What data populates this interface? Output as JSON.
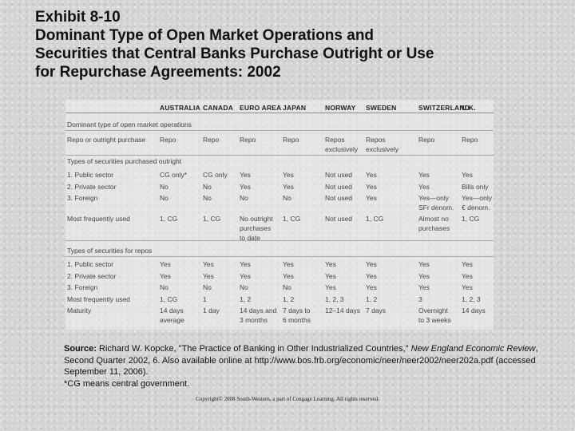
{
  "title": {
    "line1": "Exhibit 8-10",
    "line2": "Dominant Type of Open Market Operations and",
    "line3": "Securities that Central Banks Purchase Outright or Use",
    "line4": "for Repurchase Agreements: 2002"
  },
  "table": {
    "columns": [
      "AUSTRALIA",
      "CANADA",
      "EURO AREA",
      "JAPAN",
      "NORWAY",
      "SWEDEN",
      "SWITZERLAND",
      "U.K."
    ],
    "section_dominant": "Dominant type of open market operations",
    "repo_row": {
      "label": "Repo or outright purchase",
      "cells": [
        "Repo",
        "Repo",
        "Repo",
        "Repo",
        "Repos",
        "Repos",
        "Repo",
        "Repo"
      ],
      "cells_line2": [
        "",
        "",
        "",
        "",
        "exclusively",
        "exclusively",
        "",
        ""
      ]
    },
    "section_outright": "Types of securities purchased outright",
    "outright_rows": [
      {
        "label": "1. Public sector",
        "cells": [
          "CG only*",
          "CG only",
          "Yes",
          "Yes",
          "Not used",
          "Yes",
          "Yes",
          "Yes"
        ],
        "line2": [
          "",
          "",
          "",
          "",
          "",
          "",
          "",
          ""
        ]
      },
      {
        "label": "2. Private sector",
        "cells": [
          "No",
          "No",
          "Yes",
          "Yes",
          "Not used",
          "Yes",
          "Yes",
          "Bills only"
        ],
        "line2": [
          "",
          "",
          "",
          "",
          "",
          "",
          "",
          ""
        ]
      },
      {
        "label": "3. Foreign",
        "cells": [
          "No",
          "No",
          "No",
          "No",
          "Not used",
          "Yes",
          "Yes—only",
          "Yes—only"
        ],
        "line2": [
          "",
          "",
          "",
          "",
          "",
          "",
          "SFr denom.",
          "€ denom."
        ]
      },
      {
        "label": "Most frequently used",
        "cells": [
          "1, CG",
          "1, CG",
          "No outright",
          "1, CG",
          "Not used",
          "1, CG",
          "Almost no",
          "1, CG"
        ],
        "line2": [
          "",
          "",
          "purchases",
          "",
          "",
          "",
          "purchases",
          ""
        ],
        "line3": [
          "",
          "",
          "to date",
          "",
          "",
          "",
          "",
          ""
        ]
      }
    ],
    "section_repos": "Types of securities for repos",
    "repo_rows": [
      {
        "label": "1. Public sector",
        "cells": [
          "Yes",
          "Yes",
          "Yes",
          "Yes",
          "Yes",
          "Yes",
          "Yes",
          "Yes"
        ],
        "line2": [
          "",
          "",
          "",
          "",
          "",
          "",
          "",
          ""
        ]
      },
      {
        "label": "2. Private sector",
        "cells": [
          "Yes",
          "Yes",
          "Yes",
          "Yes",
          "Yes",
          "Yes",
          "Yes",
          "Yes"
        ],
        "line2": [
          "",
          "",
          "",
          "",
          "",
          "",
          "",
          ""
        ]
      },
      {
        "label": "3. Foreign",
        "cells": [
          "No",
          "No",
          "No",
          "No",
          "Yes",
          "Yes",
          "Yes",
          "Yes"
        ],
        "line2": [
          "",
          "",
          "",
          "",
          "",
          "",
          "",
          ""
        ]
      },
      {
        "label": "Most frequently used",
        "cells": [
          "1, CG",
          "1",
          "1, 2",
          "1, 2",
          "1, 2, 3",
          "1, 2",
          "3",
          "1, 2, 3"
        ],
        "line2": [
          "",
          "",
          "",
          "",
          "",
          "",
          "",
          ""
        ]
      },
      {
        "label": "Maturity",
        "cells": [
          "14 days",
          "1 day",
          "14 days and",
          "7 days to",
          "12–14 days",
          "7 days",
          "Overnight",
          "14 days"
        ],
        "line2": [
          "average",
          "",
          "3 months",
          "6 months",
          "",
          "",
          "to 3 weeks",
          ""
        ]
      }
    ]
  },
  "source": {
    "label": "Source:",
    "text1": " Richard W. Kopcke, \"The Practice of Banking in Other Industrialized Countries,\" ",
    "journal": "New England Economic Review",
    "text2": ", Second Quarter 2002, 6. Also available online at http://www.bos.frb.org/economic/neer/neer2002/neer202a.pdf (accessed September 11, 2006).",
    "footnote": "*CG means central government."
  },
  "copyright": "Copyright© 2008 South-Western, a part of Cengage Learning. All rights reserved."
}
